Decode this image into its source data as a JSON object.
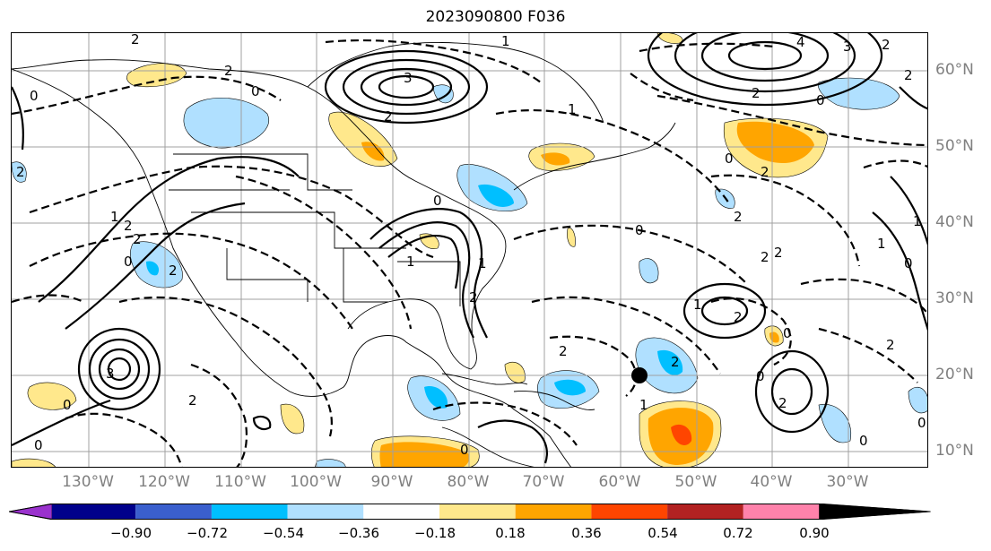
{
  "title": "2023090800 F036",
  "lon_labels": [
    "130°W",
    "120°W",
    "110°W",
    "100°W",
    "90°W",
    "80°W",
    "70°W",
    "60°W",
    "50°W",
    "40°W",
    "30°W"
  ],
  "lat_labels": [
    "60°N",
    "50°N",
    "40°N",
    "30°N",
    "20°N",
    "10°N"
  ],
  "colorbar": {
    "ticks": [
      "−0.90",
      "−0.72",
      "−0.54",
      "−0.36",
      "−0.18",
      "0.18",
      "0.36",
      "0.54",
      "0.72",
      "0.90"
    ],
    "colors": [
      "#9a32cd",
      "#00008b",
      "#3a5fcd",
      "#00bfff",
      "#b0e0ff",
      "#ffffff",
      "#ffe88c",
      "#ffa500",
      "#ff4500",
      "#b22222",
      "#ff82ab"
    ]
  },
  "contour_labels": [
    "3",
    "1",
    "2",
    "4",
    "3",
    "2",
    "2",
    "0",
    "1",
    "2",
    "0",
    "2",
    "2",
    "1",
    "0",
    "2",
    "2",
    "1",
    "2",
    "2",
    "2",
    "0",
    "2",
    "3",
    "2",
    "1",
    "2",
    "0",
    "2",
    "0",
    "2",
    "1",
    "0",
    "2",
    "0",
    "1",
    "0",
    "2",
    "0",
    "2",
    "1",
    "0",
    "1",
    "0",
    "0",
    "2",
    "0",
    "2",
    "0"
  ]
}
